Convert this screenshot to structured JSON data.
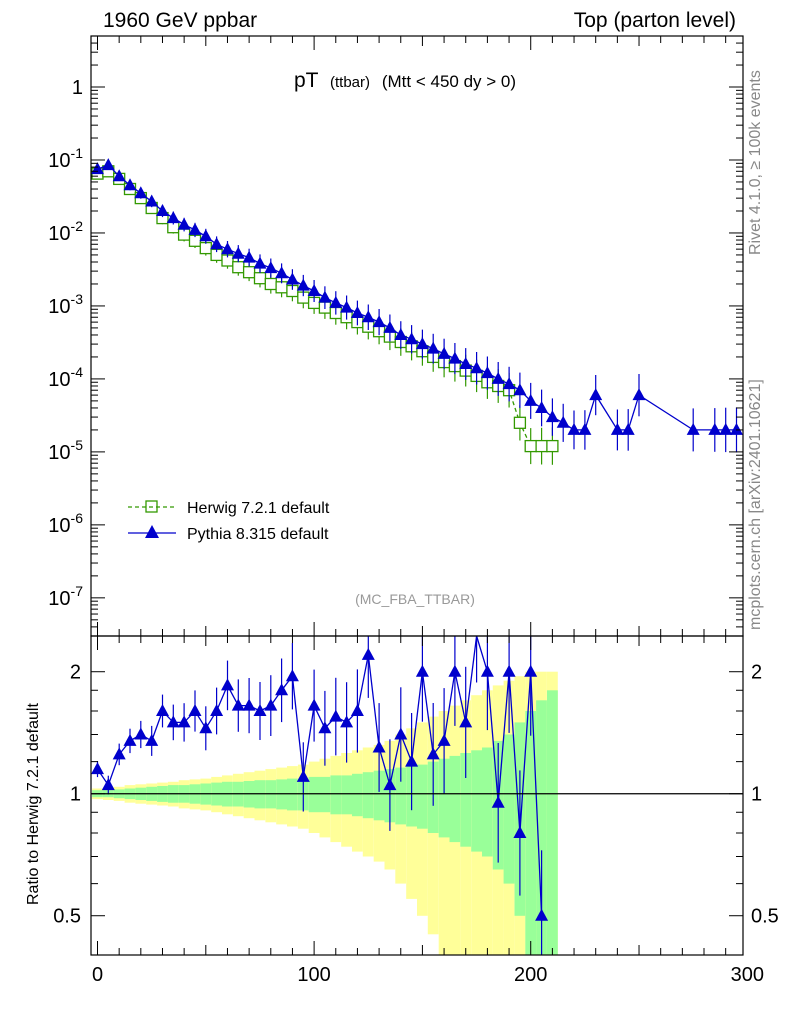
{
  "header": {
    "left": "1960 GeV ppbar",
    "right": "Top (parton level)"
  },
  "side_labels": {
    "rivet": "Rivet 4.1.0, ≥ 100k events",
    "mcplots": "mcplots.cern.ch [arXiv:2401.10621]"
  },
  "chart_data": [
    {
      "type": "line",
      "panel": "main",
      "title": "pT",
      "title_sub": "(ttbar)",
      "title_cut": "(Mtt < 450 dy > 0)",
      "analysis_label": "(MC_FBA_TTBAR)",
      "xlabel": "",
      "ylabel": "",
      "xlim": [
        -3,
        298
      ],
      "ylim": [
        3e-08,
        5
      ],
      "yscale": "log",
      "y_tick_labels": [
        "1",
        "10^-1",
        "10^-2",
        "10^-3",
        "10^-4",
        "10^-5",
        "10^-6",
        "10^-7"
      ],
      "y_tick_values": [
        1,
        0.1,
        0.01,
        0.001,
        0.0001,
        1e-05,
        1e-06,
        1e-07
      ],
      "series": [
        {
          "name": "Herwig 7.2.1 default",
          "color": "#339900",
          "marker": "open-square",
          "dashed": true,
          "x": [
            0,
            5,
            10,
            15,
            20,
            25,
            30,
            35,
            40,
            45,
            50,
            55,
            60,
            65,
            70,
            75,
            80,
            85,
            90,
            95,
            100,
            105,
            110,
            115,
            120,
            125,
            130,
            135,
            140,
            145,
            150,
            155,
            160,
            165,
            170,
            175,
            180,
            185,
            190,
            195,
            200,
            205,
            210
          ],
          "values": [
            0.065,
            0.07,
            0.055,
            0.04,
            0.03,
            0.022,
            0.016,
            0.012,
            0.0095,
            0.0078,
            0.0062,
            0.005,
            0.0042,
            0.0034,
            0.0029,
            0.0024,
            0.002,
            0.0018,
            0.0016,
            0.0013,
            0.0011,
            0.00095,
            0.0008,
            0.0007,
            0.0006,
            0.00052,
            0.00045,
            0.00038,
            0.00032,
            0.00028,
            0.00024,
            0.0002,
            0.00017,
            0.00015,
            0.00013,
            0.00011,
            9e-05,
            8e-05,
            7e-05,
            2.5e-05,
            1.2e-05,
            1.2e-05,
            1.2e-05
          ]
        },
        {
          "name": "Pythia 8.315 default",
          "color": "#0000cc",
          "marker": "filled-triangle",
          "dashed": false,
          "x": [
            0,
            5,
            10,
            15,
            20,
            25,
            30,
            35,
            40,
            45,
            50,
            55,
            60,
            65,
            70,
            75,
            80,
            85,
            90,
            95,
            100,
            105,
            110,
            115,
            120,
            125,
            130,
            135,
            140,
            145,
            150,
            155,
            160,
            165,
            170,
            175,
            180,
            185,
            190,
            195,
            200,
            205,
            210,
            215,
            220,
            225,
            230,
            240,
            245,
            250,
            275,
            285,
            290,
            295
          ],
          "values": [
            0.075,
            0.085,
            0.06,
            0.045,
            0.035,
            0.027,
            0.02,
            0.016,
            0.013,
            0.011,
            0.009,
            0.007,
            0.006,
            0.0052,
            0.0046,
            0.0038,
            0.0033,
            0.0028,
            0.0023,
            0.0019,
            0.0016,
            0.0013,
            0.0011,
            0.00095,
            0.0008,
            0.0007,
            0.0006,
            0.0005,
            0.0004,
            0.00035,
            0.0003,
            0.00026,
            0.00022,
            0.00019,
            0.00016,
            0.00014,
            0.00012,
            0.0001,
            8.5e-05,
            7e-05,
            5e-05,
            4e-05,
            3e-05,
            2.5e-05,
            2e-05,
            2e-05,
            6e-05,
            2e-05,
            2e-05,
            6e-05,
            2e-05,
            2e-05,
            2e-05,
            2e-05
          ]
        }
      ]
    },
    {
      "type": "line",
      "panel": "ratio",
      "title": "",
      "xlabel": "",
      "ylabel": "Ratio to Herwig 7.2.1 default",
      "xlim": [
        -3,
        298
      ],
      "ylim": [
        0.4,
        2.45
      ],
      "yscale": "log",
      "x_tick_labels": [
        "0",
        "100",
        "200",
        "300"
      ],
      "y_tick_labels": [
        "0.5",
        "1",
        "2"
      ],
      "reference_line": 1,
      "band_inner_color": "#99ff99",
      "band_outer_color": "#ffff99",
      "series": [
        {
          "name": "Pythia 8.315 default",
          "color": "#0000cc",
          "marker": "filled-triangle",
          "x": [
            0,
            5,
            10,
            15,
            20,
            25,
            30,
            35,
            40,
            45,
            50,
            55,
            60,
            65,
            70,
            75,
            80,
            85,
            90,
            95,
            100,
            105,
            110,
            115,
            120,
            125,
            130,
            135,
            140,
            145,
            150,
            155,
            160,
            165,
            170,
            175,
            180,
            185,
            190,
            195,
            200,
            205
          ],
          "values": [
            1.15,
            1.05,
            1.25,
            1.35,
            1.4,
            1.35,
            1.6,
            1.5,
            1.5,
            1.6,
            1.45,
            1.6,
            1.85,
            1.65,
            1.65,
            1.6,
            1.65,
            1.8,
            1.95,
            1.1,
            1.65,
            1.45,
            1.55,
            1.5,
            1.6,
            2.2,
            1.3,
            1.05,
            1.4,
            1.2,
            2.0,
            1.25,
            1.35,
            2.0,
            1.5,
            2.6,
            2.0,
            0.95,
            2.0,
            0.8,
            2.0,
            0.5
          ]
        }
      ],
      "band_x": [
        0,
        5,
        10,
        15,
        20,
        25,
        30,
        35,
        40,
        45,
        50,
        55,
        60,
        65,
        70,
        75,
        80,
        85,
        90,
        95,
        100,
        105,
        110,
        115,
        120,
        125,
        130,
        135,
        140,
        145,
        150,
        155,
        160,
        165,
        170,
        175,
        180,
        185,
        190,
        195,
        200,
        205,
        210
      ],
      "band_inner": [
        0.02,
        0.02,
        0.025,
        0.03,
        0.035,
        0.04,
        0.045,
        0.05,
        0.05,
        0.055,
        0.06,
        0.065,
        0.07,
        0.07,
        0.075,
        0.08,
        0.08,
        0.085,
        0.09,
        0.09,
        0.1,
        0.1,
        0.11,
        0.11,
        0.12,
        0.13,
        0.14,
        0.15,
        0.16,
        0.17,
        0.18,
        0.2,
        0.22,
        0.24,
        0.26,
        0.28,
        0.3,
        0.35,
        0.4,
        0.5,
        0.6,
        0.7,
        0.8
      ],
      "band_outer": [
        0.03,
        0.035,
        0.04,
        0.05,
        0.055,
        0.06,
        0.065,
        0.07,
        0.08,
        0.085,
        0.09,
        0.1,
        0.11,
        0.12,
        0.13,
        0.14,
        0.15,
        0.16,
        0.17,
        0.18,
        0.2,
        0.22,
        0.24,
        0.26,
        0.28,
        0.3,
        0.32,
        0.35,
        0.4,
        0.45,
        0.5,
        0.55,
        0.6,
        0.65,
        0.7,
        0.75,
        0.8,
        0.85,
        0.9,
        0.95,
        1.0,
        1.0,
        1.0
      ]
    }
  ]
}
